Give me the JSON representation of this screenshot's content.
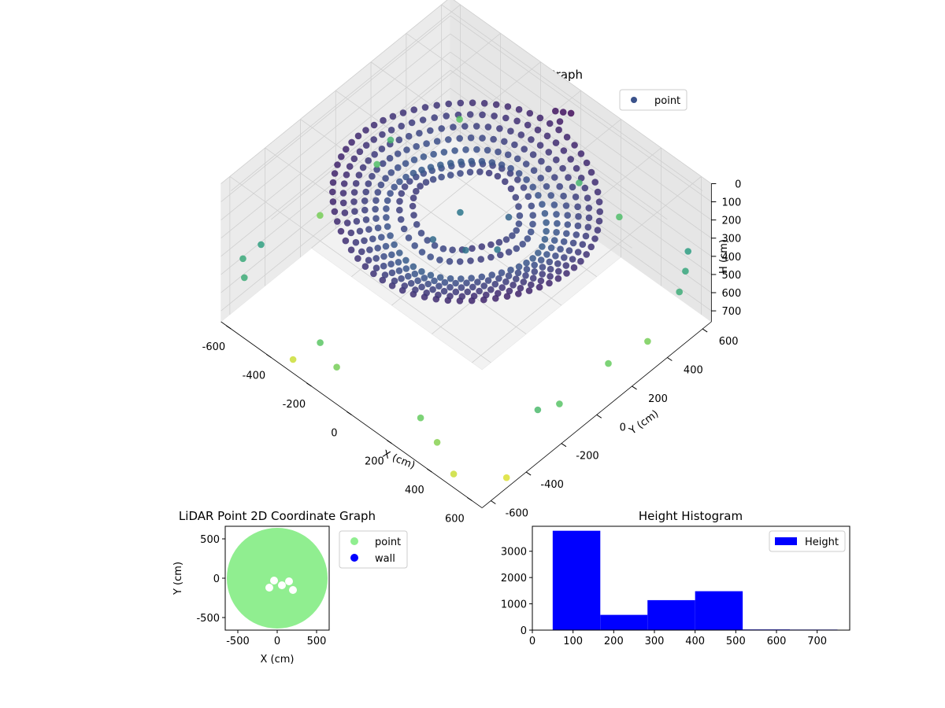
{
  "chart_data": [
    {
      "type": "scatter",
      "title": "LiDAR Point 3D Coordinate Graph",
      "xlabel": "X (cm)",
      "ylabel": "Y (cm)",
      "zlabel": "H (cm)",
      "xticks": [
        -600,
        -400,
        -200,
        0,
        200,
        400,
        600
      ],
      "yticks": [
        -600,
        -400,
        -200,
        0,
        200,
        400,
        600
      ],
      "zticks": [
        0,
        100,
        200,
        300,
        400,
        500,
        600,
        700
      ],
      "xlim": [
        -650,
        650
      ],
      "ylim": [
        -650,
        650
      ],
      "zlim": [
        0,
        760
      ],
      "z_inverted": true,
      "grid": true,
      "legend": {
        "position": "top-right",
        "entries": [
          {
            "label": "point",
            "color": "#3b528b"
          }
        ]
      },
      "colormap": "viridis",
      "series": [
        {
          "name": "point",
          "rings": [
            {
              "radius": 500,
              "z": 100,
              "count": 70
            },
            {
              "radius": 460,
              "z": 120,
              "count": 64
            },
            {
              "radius": 420,
              "z": 140,
              "count": 60
            },
            {
              "radius": 380,
              "z": 160,
              "count": 56
            },
            {
              "radius": 340,
              "z": 180,
              "count": 52
            },
            {
              "radius": 300,
              "z": 200,
              "count": 48
            },
            {
              "radius": 250,
              "z": 160,
              "count": 40
            },
            {
              "radius": 200,
              "z": 150,
              "count": 34
            }
          ],
          "points": [
            {
              "x": 560,
              "y": 620,
              "z": 420
            },
            {
              "x": 600,
              "y": 560,
              "z": 450
            },
            {
              "x": 640,
              "y": 480,
              "z": 470
            },
            {
              "x": -620,
              "y": -560,
              "z": 460
            },
            {
              "x": -600,
              "y": -480,
              "z": 430
            },
            {
              "x": -560,
              "y": -620,
              "z": 470
            },
            {
              "x": 620,
              "y": -300,
              "z": 520
            },
            {
              "x": 640,
              "y": -200,
              "z": 550
            },
            {
              "x": -640,
              "y": 300,
              "z": 500
            },
            {
              "x": -620,
              "y": 200,
              "z": 540
            },
            {
              "x": -200,
              "y": -600,
              "z": 560
            },
            {
              "x": -100,
              "y": -620,
              "z": 600
            },
            {
              "x": 300,
              "y": -600,
              "z": 580
            },
            {
              "x": 400,
              "y": -620,
              "z": 620
            },
            {
              "x": 620,
              "y": 100,
              "z": 580
            },
            {
              "x": 640,
              "y": 300,
              "z": 600
            },
            {
              "x": -640,
              "y": -100,
              "z": 600
            },
            {
              "x": -560,
              "y": 600,
              "z": 560
            },
            {
              "x": 0,
              "y": 640,
              "z": 500
            },
            {
              "x": 200,
              "y": 640,
              "z": 530
            },
            {
              "x": -300,
              "y": -640,
              "z": 700
            },
            {
              "x": 500,
              "y": -640,
              "z": 700
            },
            {
              "x": 640,
              "y": -500,
              "z": 720
            },
            {
              "x": -100,
              "y": 80,
              "z": 300
            },
            {
              "x": 50,
              "y": -60,
              "z": 280
            },
            {
              "x": 120,
              "y": 40,
              "z": 300
            },
            {
              "x": -60,
              "y": -120,
              "z": 260
            },
            {
              "x": 80,
              "y": 150,
              "z": 240
            },
            {
              "x": 0,
              "y": 550,
              "z": 40
            },
            {
              "x": 30,
              "y": 560,
              "z": 30
            },
            {
              "x": -30,
              "y": 540,
              "z": 50
            },
            {
              "x": 10,
              "y": 520,
              "z": 60
            }
          ]
        }
      ]
    },
    {
      "type": "scatter",
      "title": "LiDAR Point 2D Coordinate Graph",
      "xlabel": "X (cm)",
      "ylabel": "Y (cm)",
      "xticks": [
        -500,
        0,
        500
      ],
      "yticks": [
        -500,
        0,
        500
      ],
      "xlim": [
        -660,
        660
      ],
      "ylim": [
        -660,
        660
      ],
      "legend": {
        "position": "right",
        "entries": [
          {
            "label": "point",
            "color": "#90ee90"
          },
          {
            "label": "wall",
            "color": "#0000ff"
          }
        ]
      },
      "series": [
        {
          "name": "point",
          "shape": "filled-disc",
          "radius": 640
        },
        {
          "name": "wall",
          "points": []
        }
      ]
    },
    {
      "type": "bar",
      "title": "Height Histogram",
      "xlabel": "",
      "ylabel": "",
      "xticks": [
        0,
        100,
        200,
        300,
        400,
        500,
        600,
        700
      ],
      "yticks": [
        0,
        1000,
        2000,
        3000
      ],
      "xlim": [
        0,
        780
      ],
      "ylim": [
        0,
        3950
      ],
      "legend": {
        "position": "top-right",
        "entries": [
          {
            "label": "Height",
            "color": "#0000ff"
          }
        ]
      },
      "bins": [
        {
          "start": 50,
          "end": 167,
          "value": 3780
        },
        {
          "start": 167,
          "end": 283,
          "value": 580
        },
        {
          "start": 283,
          "end": 400,
          "value": 1140
        },
        {
          "start": 400,
          "end": 517,
          "value": 1480
        },
        {
          "start": 517,
          "end": 633,
          "value": 25
        },
        {
          "start": 633,
          "end": 750,
          "value": 20
        }
      ],
      "color": "#0000ff"
    }
  ]
}
